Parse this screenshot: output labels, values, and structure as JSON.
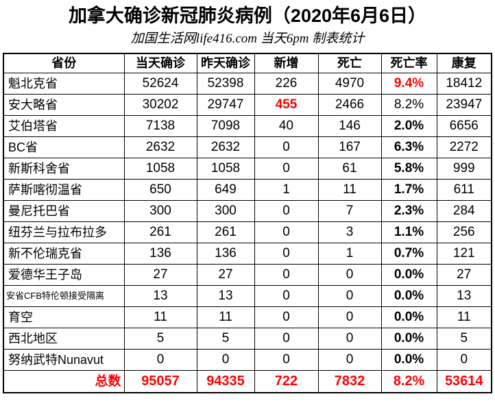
{
  "page": {
    "title": "加拿大确诊新冠肺炎病例（2020年6月6日）",
    "subtitle": "加国生活网life416.com 当天6pm 制表统计"
  },
  "colors": {
    "highlight_red": "#ff0000",
    "text_black": "#000000",
    "border_black": "#000000",
    "background": "#ffffff"
  },
  "chart_data": {
    "type": "table",
    "title": "加拿大确诊新冠肺炎病例（2020年6月6日）",
    "subtitle": "加国生活网life416.com 当天6pm 制表统计",
    "columns": [
      "省份",
      "当天确诊",
      "昨天确诊",
      "新增",
      "死亡",
      "死亡率",
      "康复"
    ],
    "rows": [
      {
        "name": "魁北克省",
        "values": [
          "52624",
          "52398",
          "226",
          "4970",
          "9.4%",
          "18412"
        ],
        "red": [
          4
        ]
      },
      {
        "name": "安大略省",
        "values": [
          "30202",
          "29747",
          "455",
          "2466",
          "8.2%",
          "23947"
        ],
        "red": [
          2
        ],
        "rate_bold": false
      },
      {
        "name": "艾伯塔省",
        "values": [
          "7138",
          "7098",
          "40",
          "146",
          "2.0%",
          "6656"
        ]
      },
      {
        "name": "BC省",
        "values": [
          "2632",
          "2632",
          "0",
          "167",
          "6.3%",
          "2272"
        ]
      },
      {
        "name": "新斯科舍省",
        "values": [
          "1058",
          "1058",
          "0",
          "61",
          "5.8%",
          "999"
        ]
      },
      {
        "name": "萨斯喀彻温省",
        "values": [
          "650",
          "649",
          "1",
          "11",
          "1.7%",
          "611"
        ]
      },
      {
        "name": "曼尼托巴省",
        "values": [
          "300",
          "300",
          "0",
          "7",
          "2.3%",
          "284"
        ]
      },
      {
        "name": "纽芬兰与拉布拉多",
        "values": [
          "261",
          "261",
          "0",
          "3",
          "1.1%",
          "256"
        ]
      },
      {
        "name": "新不伦瑞克省",
        "values": [
          "136",
          "136",
          "0",
          "1",
          "0.7%",
          "121"
        ]
      },
      {
        "name": "爱德华王子岛",
        "values": [
          "27",
          "27",
          "0",
          "0",
          "0.0%",
          "27"
        ]
      },
      {
        "name": "安省CFB特伦顿接受隔离",
        "values": [
          "13",
          "13",
          "0",
          "0",
          "0.0%",
          "13"
        ],
        "small": true
      },
      {
        "name": "育空",
        "values": [
          "11",
          "11",
          "0",
          "0",
          "0.0%",
          "11"
        ]
      },
      {
        "name": "西北地区",
        "values": [
          "5",
          "5",
          "0",
          "0",
          "0.0%",
          "5"
        ]
      },
      {
        "name": "努纳武特Nunavut",
        "values": [
          "0",
          "0",
          "0",
          "0",
          "0.0%",
          "0"
        ]
      }
    ],
    "total": {
      "label": "总数",
      "values": [
        "95057",
        "94335",
        "722",
        "7832",
        "8.2%",
        "53614"
      ]
    }
  }
}
